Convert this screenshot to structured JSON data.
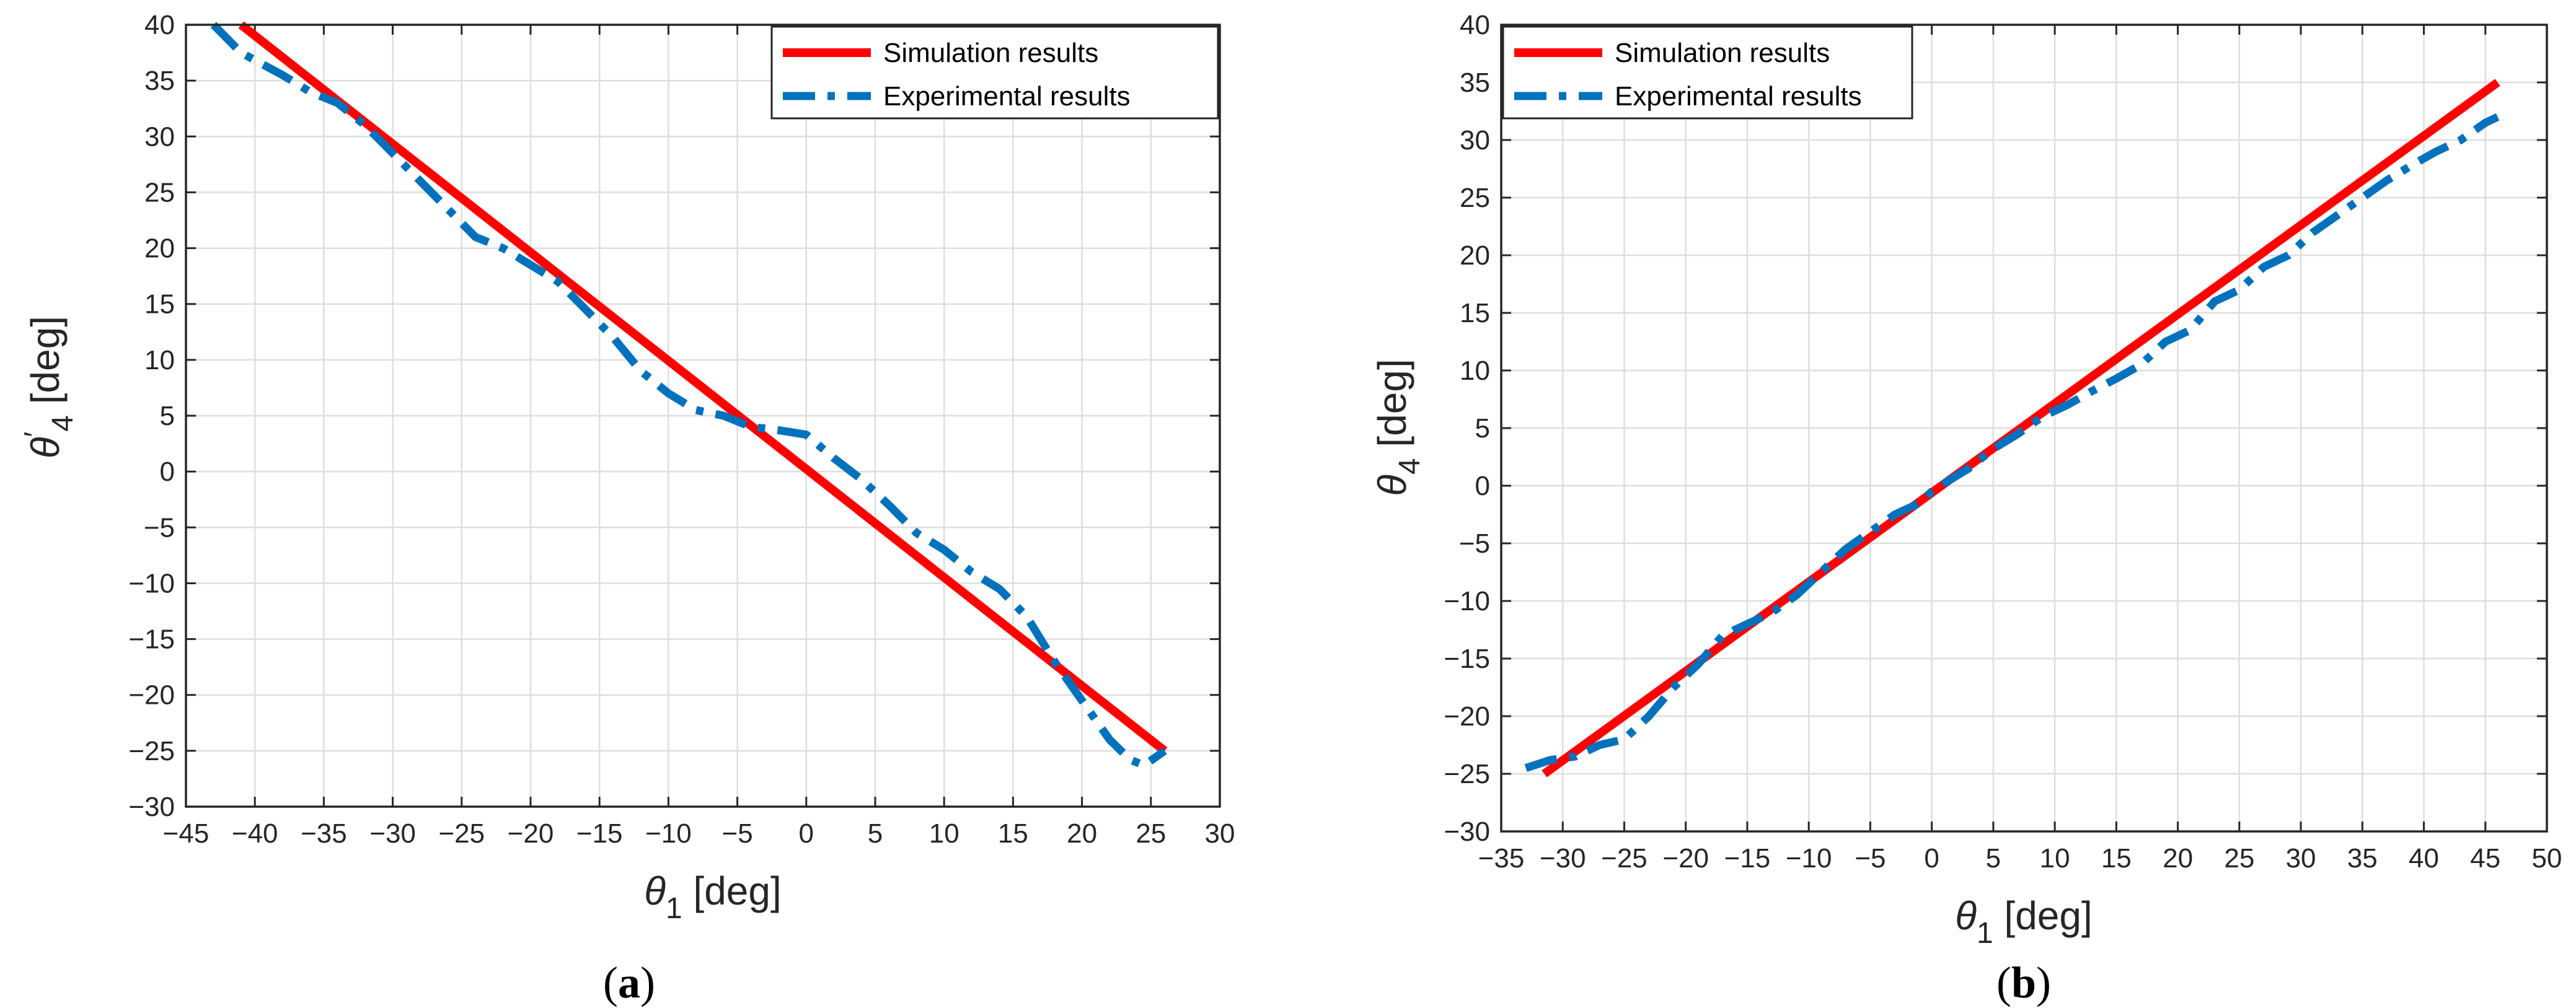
{
  "chart_data": [
    {
      "type": "line",
      "panel_label": "(a)",
      "xlabel": {
        "symbol": "θ",
        "sub": "1",
        "unit": "[deg]"
      },
      "ylabel": {
        "symbol": "θ",
        "prime": "′",
        "sub": "4",
        "unit": "[deg]"
      },
      "xlim": [
        -45,
        30
      ],
      "ylim": [
        -30,
        40
      ],
      "xticks": [
        -45,
        -40,
        -35,
        -30,
        -25,
        -20,
        -15,
        -10,
        -5,
        0,
        5,
        10,
        15,
        20,
        25,
        30
      ],
      "yticks": [
        -30,
        -25,
        -20,
        -15,
        -10,
        -5,
        0,
        5,
        10,
        15,
        20,
        25,
        30,
        35,
        40
      ],
      "grid": true,
      "legend_position": "top-right",
      "series": [
        {
          "name": "Simulation results",
          "color": "#ff0000",
          "style": "solid",
          "points": [
            [
              -41,
              40
            ],
            [
              26,
              -25
            ]
          ]
        },
        {
          "name": "Experimental results",
          "color": "#0072bd",
          "style": "dash-dot",
          "points": [
            [
              -43,
              40
            ],
            [
              -41,
              37.5
            ],
            [
              -38,
              35.5
            ],
            [
              -36,
              34
            ],
            [
              -34,
              33
            ],
            [
              -32,
              31
            ],
            [
              -30,
              28.5
            ],
            [
              -28,
              26
            ],
            [
              -26,
              23.5
            ],
            [
              -24,
              21
            ],
            [
              -22,
              20
            ],
            [
              -20,
              18.5
            ],
            [
              -18,
              17
            ],
            [
              -16,
              14.5
            ],
            [
              -14,
              12
            ],
            [
              -12,
              9
            ],
            [
              -10,
              7
            ],
            [
              -8,
              5.5
            ],
            [
              -6,
              5
            ],
            [
              -4,
              4
            ],
            [
              -2,
              3.7
            ],
            [
              0,
              3.3
            ],
            [
              2,
              1.2
            ],
            [
              4,
              -0.7
            ],
            [
              6,
              -3
            ],
            [
              8,
              -5.5
            ],
            [
              10,
              -7
            ],
            [
              12,
              -9
            ],
            [
              14,
              -10.5
            ],
            [
              16,
              -13
            ],
            [
              18,
              -17
            ],
            [
              20,
              -20.5
            ],
            [
              22,
              -24
            ],
            [
              23.5,
              -25.8
            ],
            [
              24.5,
              -26.3
            ],
            [
              26,
              -25
            ]
          ]
        }
      ]
    },
    {
      "type": "line",
      "panel_label": "(b)",
      "xlabel": {
        "symbol": "θ",
        "sub": "1",
        "unit": "[deg]"
      },
      "ylabel": {
        "symbol": "θ",
        "sub": "4",
        "unit": "[deg]"
      },
      "xlim": [
        -35,
        50
      ],
      "ylim": [
        -30,
        40
      ],
      "xticks": [
        -35,
        -30,
        -25,
        -20,
        -15,
        -10,
        -5,
        0,
        5,
        10,
        15,
        20,
        25,
        30,
        35,
        40,
        45,
        50
      ],
      "yticks": [
        -30,
        -25,
        -20,
        -15,
        -10,
        -5,
        0,
        5,
        10,
        15,
        20,
        25,
        30,
        35,
        40
      ],
      "grid": true,
      "legend_position": "top-left",
      "series": [
        {
          "name": "Simulation results",
          "color": "#ff0000",
          "style": "solid",
          "points": [
            [
              -31.5,
              -25
            ],
            [
              46,
              35
            ]
          ]
        },
        {
          "name": "Experimental results",
          "color": "#0072bd",
          "style": "dash-dot",
          "points": [
            [
              -33,
              -24.5
            ],
            [
              -31,
              -23.8
            ],
            [
              -29,
              -23.5
            ],
            [
              -27,
              -22.5
            ],
            [
              -25,
              -22
            ],
            [
              -23,
              -20
            ],
            [
              -21,
              -17.5
            ],
            [
              -19,
              -15.5
            ],
            [
              -17,
              -13
            ],
            [
              -15,
              -12
            ],
            [
              -13,
              -11
            ],
            [
              -11,
              -9.5
            ],
            [
              -9,
              -7.5
            ],
            [
              -7,
              -5.5
            ],
            [
              -5,
              -4
            ],
            [
              -3,
              -2.5
            ],
            [
              -1,
              -1.5
            ],
            [
              0,
              -0.5
            ],
            [
              1,
              0.2
            ],
            [
              3,
              1.5
            ],
            [
              5,
              3.2
            ],
            [
              7,
              4.5
            ],
            [
              9,
              6
            ],
            [
              11,
              7
            ],
            [
              13,
              8.2
            ],
            [
              15,
              9.3
            ],
            [
              17,
              10.5
            ],
            [
              19,
              12.5
            ],
            [
              21,
              13.5
            ],
            [
              23,
              16
            ],
            [
              25,
              17
            ],
            [
              27,
              19
            ],
            [
              29,
              20
            ],
            [
              31,
              22
            ],
            [
              33,
              23.5
            ],
            [
              35,
              25
            ],
            [
              37,
              26.5
            ],
            [
              39,
              27.8
            ],
            [
              41,
              29
            ],
            [
              43,
              30
            ],
            [
              45,
              31.5
            ],
            [
              46,
              32
            ]
          ]
        }
      ]
    }
  ]
}
